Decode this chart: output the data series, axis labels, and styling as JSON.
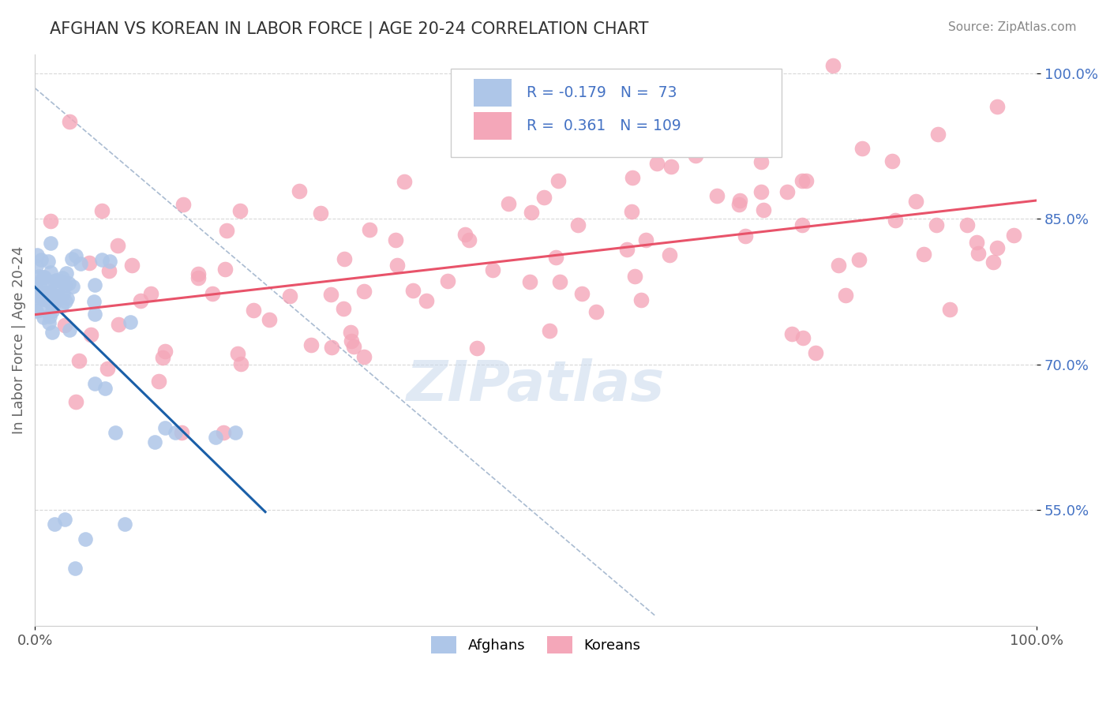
{
  "title": "AFGHAN VS KOREAN IN LABOR FORCE | AGE 20-24 CORRELATION CHART",
  "source": "Source: ZipAtlas.com",
  "ylabel": "In Labor Force | Age 20-24",
  "xlim": [
    0.0,
    1.0
  ],
  "ylim": [
    0.43,
    1.02
  ],
  "x_tick_labels": [
    "0.0%",
    "100.0%"
  ],
  "y_ticks": [
    0.55,
    0.7,
    0.85,
    1.0
  ],
  "y_tick_labels": [
    "55.0%",
    "70.0%",
    "85.0%",
    "100.0%"
  ],
  "afghan_color": "#aec6e8",
  "korean_color": "#f4a7b9",
  "afghan_line_color": "#1a5fa8",
  "korean_line_color": "#e8536a",
  "ref_line_color": "#a0b4cc",
  "R_afghan": -0.179,
  "N_afghan": 73,
  "R_korean": 0.361,
  "N_korean": 109,
  "watermark": "ZIPatlas",
  "background_color": "#ffffff",
  "grid_color": "#d8d8d8",
  "title_color": "#333333",
  "source_color": "#888888",
  "legend_label_afghan": "Afghans",
  "legend_label_korean": "Koreans",
  "tick_color": "#4472C4",
  "axis_label_color": "#666666"
}
